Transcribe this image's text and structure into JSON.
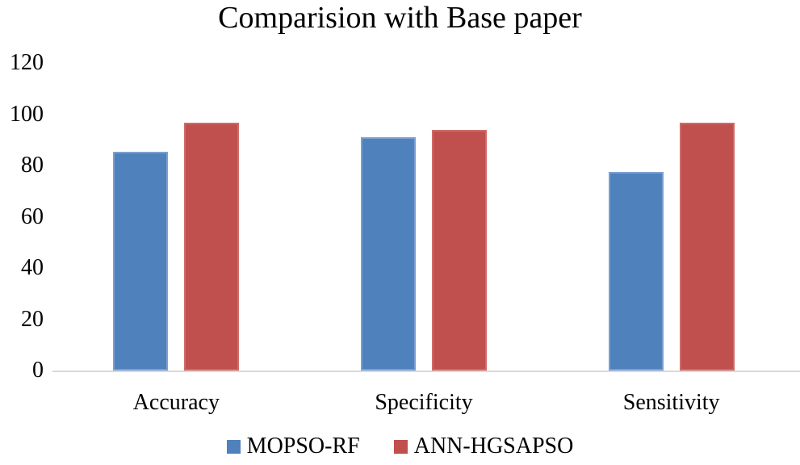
{
  "title": "Comparision with Base paper",
  "colors": {
    "background": "#FFFFFF",
    "text": "#000000",
    "axis_line": "#D9D9D9",
    "series_fill": [
      "#4F81BD",
      "#C0504D"
    ],
    "series_border": [
      "#7B9FD0",
      "#CD6B68"
    ]
  },
  "chart_data": {
    "type": "bar",
    "title": "Comparision with Base paper",
    "categories": [
      "Accuracy",
      "Specificity",
      "Sensitivity"
    ],
    "series": [
      {
        "name": "MOPSO-RF",
        "color": "#4F81BD",
        "values": [
          85.4,
          91.0,
          77.5
        ]
      },
      {
        "name": "ANN-HGSAPSO",
        "color": "#C0504D",
        "values": [
          96.7,
          94.0,
          96.8
        ]
      }
    ],
    "xlabel": "",
    "ylabel": "",
    "ylim": [
      0,
      120
    ],
    "ytick_step": 20,
    "yticks": [
      0,
      20,
      40,
      60,
      80,
      100,
      120
    ],
    "grid": false,
    "legend_position": "bottom"
  }
}
